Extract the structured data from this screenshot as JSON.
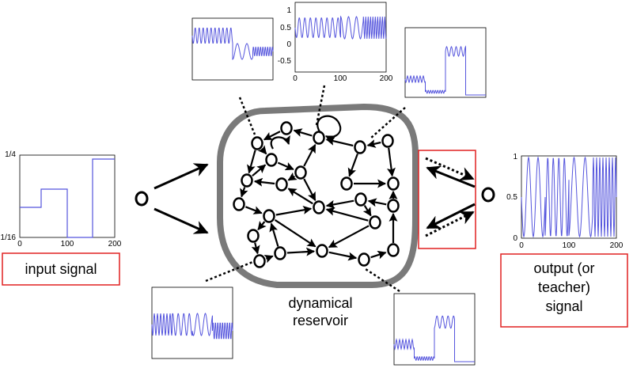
{
  "labels": {
    "input": "input signal",
    "output_line1": "output (or",
    "output_line2": "teacher)",
    "output_line3": "signal",
    "reservoir_line1": "dynamical",
    "reservoir_line2": "reservoir"
  },
  "input_plot": {
    "y_top": "1/4",
    "y_bottom": "1/16",
    "x_ticks": [
      "0",
      "100",
      "200"
    ]
  },
  "output_plot": {
    "y_ticks": [
      "1",
      "0.5",
      "0"
    ],
    "x_ticks": [
      "0",
      "100",
      "200"
    ]
  },
  "top_plot": {
    "y_ticks": [
      "1",
      "0.5",
      "0",
      "-0.5"
    ],
    "x_ticks": [
      "0",
      "100",
      "200"
    ]
  },
  "colors": {
    "signal": "#5555dd",
    "reservoir_border": "#7a7a7a",
    "highlight_box": "#e02020",
    "ink": "#000000"
  }
}
